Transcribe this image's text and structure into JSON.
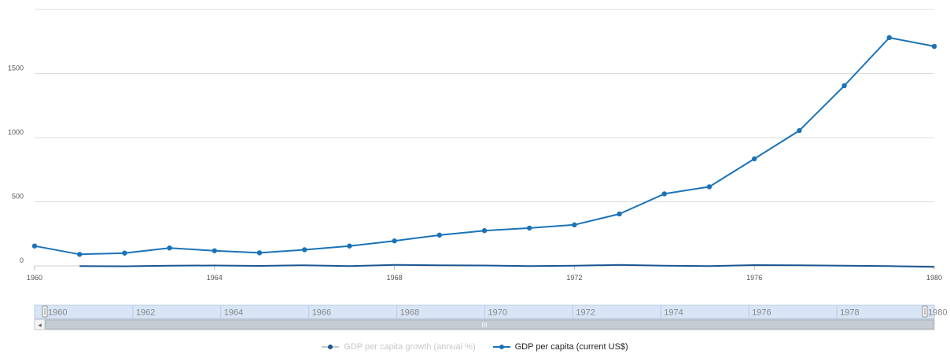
{
  "chart_data": {
    "type": "line",
    "x": [
      1960,
      1961,
      1962,
      1963,
      1964,
      1965,
      1966,
      1967,
      1968,
      1969,
      1970,
      1971,
      1972,
      1973,
      1974,
      1975,
      1976,
      1977,
      1978,
      1979,
      1980
    ],
    "series": [
      {
        "name": "GDP per capita growth (annual %)",
        "color": "#1a5592",
        "visible": false,
        "values": [
          null,
          -1,
          -3,
          2,
          3,
          0,
          5,
          -1,
          8,
          5,
          3,
          -2,
          1,
          8,
          2,
          -1,
          6,
          4,
          2,
          -2,
          -8
        ]
      },
      {
        "name": "GDP per capita (current US$)",
        "color": "#1a73b8",
        "visible": true,
        "values": [
          155,
          90,
          100,
          140,
          118,
          102,
          126,
          155,
          195,
          240,
          275,
          295,
          320,
          405,
          562,
          617,
          835,
          1055,
          1405,
          1780,
          1712
        ]
      }
    ],
    "y_ticks": [
      0,
      500,
      1000,
      1500
    ],
    "x_ticks": [
      1960,
      1964,
      1968,
      1972,
      1976,
      1980
    ],
    "ylim": [
      0,
      2000
    ],
    "xlim": [
      1960,
      1980
    ],
    "grid": true,
    "legend_position": "bottom"
  },
  "navigator": {
    "labels": [
      "1960",
      "1962",
      "1964",
      "1966",
      "1968",
      "1970",
      "1972",
      "1974",
      "1976",
      "1978",
      "1980"
    ],
    "scroll_left_arrow": "◂",
    "scroll_thumb_grip": "III"
  },
  "legend": {
    "items": [
      {
        "label": "GDP per capita growth (annual %)",
        "state": "hidden"
      },
      {
        "label": "GDP per capita (current US$)",
        "state": "shown"
      }
    ]
  }
}
